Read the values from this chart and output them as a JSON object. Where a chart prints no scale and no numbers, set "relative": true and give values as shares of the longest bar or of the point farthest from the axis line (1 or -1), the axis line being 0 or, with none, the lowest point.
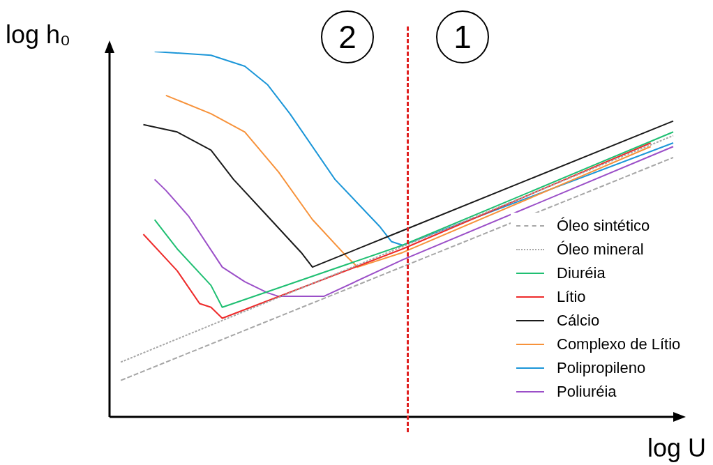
{
  "chart_data": {
    "type": "line",
    "relative": true,
    "xlabel": "log U",
    "ylabel": "log h₀",
    "legend": "bottom right",
    "marker": "none",
    "annotations": [
      "2",
      "1"
    ],
    "categories": [
      null,
      null,
      null,
      null,
      null,
      null,
      null,
      null,
      null,
      null,
      null,
      null,
      null,
      null,
      null,
      null,
      null,
      null,
      null,
      null,
      null,
      null,
      null,
      null,
      null,
      null,
      null,
      null,
      null,
      null,
      null,
      null,
      null,
      null,
      null,
      null,
      null,
      null,
      null,
      null,
      null,
      null,
      null,
      null,
      null,
      null,
      null,
      null,
      null,
      null,
      null
    ],
    "series": [
      {
        "name": "Óleo sintético",
        "color": "#a6a6a6",
        "line_style": "dashed",
        "values": [
          null,
          0.1,
          null,
          null,
          null,
          null,
          null,
          null,
          null,
          null,
          null,
          null,
          null,
          null,
          null,
          null,
          null,
          null,
          null,
          null,
          null,
          null,
          null,
          null,
          null,
          null,
          null,
          null,
          null,
          null,
          null,
          null,
          null,
          null,
          null,
          null,
          null,
          null,
          null,
          null,
          null,
          null,
          null,
          null,
          null,
          null,
          null,
          null,
          null,
          null,
          0.71
        ]
      },
      {
        "name": "Óleo mineral",
        "color": "#a6a6a6",
        "line_style": "dotted",
        "values": [
          null,
          0.15,
          null,
          null,
          null,
          null,
          null,
          null,
          null,
          null,
          null,
          null,
          null,
          null,
          null,
          null,
          null,
          null,
          null,
          null,
          null,
          null,
          null,
          null,
          null,
          null,
          null,
          null,
          null,
          null,
          null,
          null,
          null,
          null,
          null,
          null,
          null,
          null,
          null,
          null,
          null,
          null,
          null,
          null,
          null,
          null,
          null,
          null,
          null,
          null,
          0.77
        ]
      },
      {
        "name": "Diuréia",
        "color": "#1fbf72",
        "values": [
          null,
          null,
          null,
          null,
          0.54,
          null,
          0.46,
          null,
          null,
          0.36,
          0.3,
          null,
          null,
          null,
          null,
          null,
          null,
          null,
          null,
          null,
          null,
          null,
          null,
          null,
          null,
          null,
          0.47,
          null,
          null,
          null,
          null,
          null,
          null,
          null,
          null,
          null,
          null,
          null,
          null,
          null,
          null,
          null,
          null,
          null,
          null,
          null,
          null,
          null,
          null,
          null,
          0.78
        ]
      },
      {
        "name": "Lítio",
        "color": "#ee2a2a",
        "values": [
          null,
          null,
          null,
          0.5,
          null,
          null,
          0.4,
          null,
          0.31,
          0.3,
          0.27,
          null,
          null,
          null,
          null,
          null,
          null,
          null,
          null,
          null,
          null,
          null,
          null,
          null,
          null,
          null,
          0.46,
          null,
          null,
          null,
          null,
          null,
          null,
          null,
          null,
          null,
          null,
          null,
          null,
          null,
          null,
          null,
          null,
          null,
          null,
          null,
          null,
          null,
          0.75,
          null,
          null
        ]
      },
      {
        "name": "Cálcio",
        "color": "#1a1a1a",
        "values": [
          null,
          null,
          null,
          0.8,
          null,
          null,
          0.78,
          null,
          null,
          0.73,
          null,
          0.65,
          null,
          null,
          0.55,
          null,
          null,
          0.45,
          0.41,
          null,
          null,
          null,
          null,
          null,
          null,
          null,
          0.51,
          null,
          null,
          null,
          null,
          null,
          null,
          null,
          null,
          null,
          null,
          null,
          null,
          null,
          null,
          null,
          null,
          null,
          null,
          null,
          null,
          null,
          null,
          null,
          0.81
        ]
      },
      {
        "name": "Complexo de Lítio",
        "color": "#f7923a",
        "values": [
          null,
          null,
          null,
          null,
          null,
          0.88,
          null,
          null,
          null,
          0.83,
          null,
          null,
          0.78,
          null,
          null,
          0.67,
          null,
          null,
          0.54,
          null,
          null,
          0.44,
          0.41,
          null,
          null,
          null,
          0.45,
          null,
          null,
          null,
          null,
          null,
          null,
          null,
          null,
          null,
          null,
          null,
          null,
          null,
          null,
          null,
          null,
          null,
          null,
          null,
          null,
          null,
          0.74,
          null,
          null
        ]
      },
      {
        "name": "Polipropileno",
        "color": "#1b96d8",
        "values": [
          null,
          null,
          null,
          null,
          1.0,
          null,
          null,
          null,
          null,
          0.99,
          null,
          null,
          0.96,
          null,
          0.91,
          null,
          0.83,
          null,
          null,
          null,
          0.65,
          null,
          null,
          null,
          0.52,
          0.48,
          0.47,
          null,
          null,
          null,
          null,
          null,
          null,
          null,
          null,
          null,
          null,
          null,
          null,
          null,
          null,
          null,
          null,
          null,
          null,
          null,
          null,
          null,
          null,
          null,
          0.75
        ]
      },
      {
        "name": "Poliuréia",
        "color": "#9b4fc8",
        "values": [
          null,
          null,
          null,
          null,
          0.65,
          0.62,
          null,
          0.55,
          null,
          null,
          0.41,
          null,
          0.37,
          null,
          0.34,
          0.33,
          null,
          null,
          null,
          0.33,
          null,
          null,
          null,
          null,
          null,
          null,
          0.43,
          null,
          null,
          null,
          null,
          null,
          null,
          null,
          null,
          null,
          null,
          null,
          null,
          null,
          null,
          null,
          null,
          null,
          null,
          null,
          null,
          null,
          null,
          null,
          0.74
        ]
      }
    ]
  }
}
